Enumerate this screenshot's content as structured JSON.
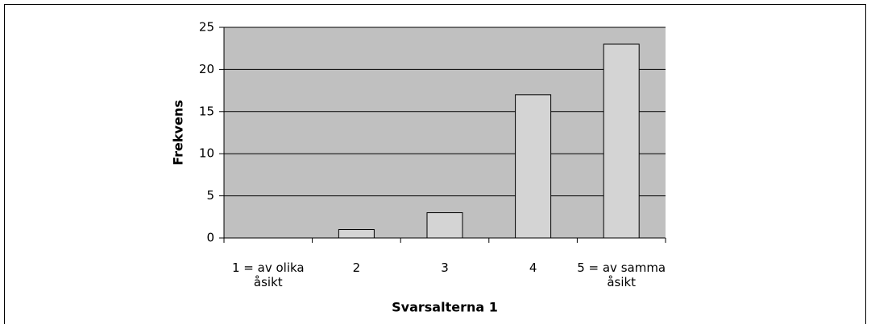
{
  "chart_data": {
    "type": "bar",
    "categories": [
      "1 = av olika åsikt",
      "2",
      "3",
      "4",
      "5 = av samma åsikt"
    ],
    "values": [
      0,
      1,
      3,
      17,
      23
    ],
    "color": "#d4d4d4",
    "plot_background": "#c0c0c0",
    "x_label": "Svarsalterna 1",
    "y_label": "Frekvens",
    "ylim": [
      0,
      25
    ],
    "yticks": [
      0,
      5,
      10,
      15,
      20,
      25
    ],
    "grid": true
  }
}
